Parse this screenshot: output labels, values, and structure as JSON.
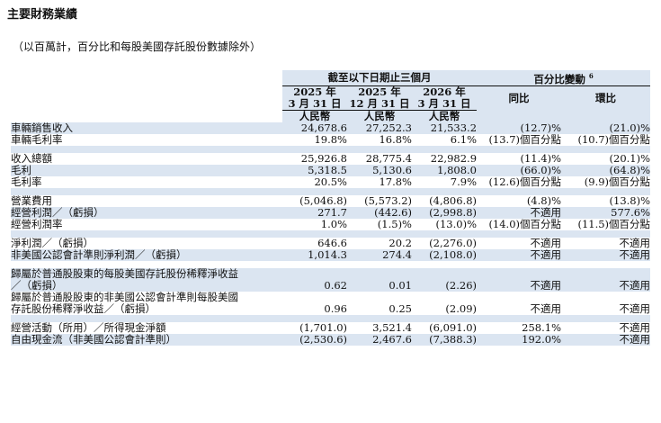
{
  "title": "主要財務業績",
  "subtitle": "（以百萬計，百分比和每股美國存託股份數據除外）",
  "header": {
    "period_group": "截至以下日期止三個月",
    "change_group": "百分比變動",
    "change_footnote": "6",
    "yoy": "同比",
    "qoq": "環比",
    "columns": [
      {
        "year": "2025 年",
        "date": "3 月 31 日",
        "currency": "人民幣"
      },
      {
        "year": "2025 年",
        "date": "12 月 31 日",
        "currency": "人民幣"
      },
      {
        "year": "2026 年",
        "date": "3 月 31 日",
        "currency": "人民幣"
      }
    ]
  },
  "rows": [
    {
      "label": "車輛銷售收入",
      "v1": "24,678.6",
      "v2": "27,252.3",
      "v3": "21,533.2",
      "yoy": "(12.7)%",
      "qoq": "(21.0)%"
    },
    {
      "label": "車輛毛利率",
      "v1": "19.8%",
      "v2": "16.8%",
      "v3": "6.1%",
      "yoy": "(13.7)個百分點",
      "qoq": "(10.7)個百分點"
    },
    {
      "label": "收入總額",
      "v1": "25,926.8",
      "v2": "28,775.4",
      "v3": "22,982.9",
      "yoy": "(11.4)%",
      "qoq": "(20.1)%"
    },
    {
      "label": "毛利",
      "v1": "5,318.5",
      "v2": "5,130.6",
      "v3": "1,808.0",
      "yoy": "(66.0)%",
      "qoq": "(64.8)%"
    },
    {
      "label": "毛利率",
      "v1": "20.5%",
      "v2": "17.8%",
      "v3": "7.9%",
      "yoy": "(12.6)個百分點",
      "qoq": "(9.9)個百分點"
    },
    {
      "label": "營業費用",
      "v1": "(5,046.8)",
      "v2": "(5,573.2)",
      "v3": "(4,806.8)",
      "yoy": "(4.8)%",
      "qoq": "(13.8)%"
    },
    {
      "label": "經營利潤／（虧損）",
      "v1": "271.7",
      "v2": "(442.6)",
      "v3": "(2,998.8)",
      "yoy": "不適用",
      "qoq": "577.6%"
    },
    {
      "label": "經營利潤率",
      "v1": "1.0%",
      "v2": "(1.5)%",
      "v3": "(13.0)%",
      "yoy": "(14.0)個百分點",
      "qoq": "(11.5)個百分點"
    },
    {
      "label": "淨利潤／（虧損）",
      "v1": "646.6",
      "v2": "20.2",
      "v3": "(2,276.0)",
      "yoy": "不適用",
      "qoq": "不適用"
    },
    {
      "label": "非美國公認會計準則淨利潤／（虧損）",
      "v1": "1,014.3",
      "v2": "274.4",
      "v3": "(2,108.0)",
      "yoy": "不適用",
      "qoq": "不適用"
    },
    {
      "label": "歸屬於普通股股東的每股美國存託股份稀釋淨收益",
      "label2": "／（虧損）",
      "v1": "0.62",
      "v2": "0.01",
      "v3": "(2.26)",
      "yoy": "不適用",
      "qoq": "不適用"
    },
    {
      "label": "歸屬於普通股股東的非美國公認會計準則每股美國",
      "label2": "存託股份稀釋淨收益／（虧損）",
      "v1": "0.96",
      "v2": "0.25",
      "v3": "(2.09)",
      "yoy": "不適用",
      "qoq": "不適用"
    },
    {
      "label": "經營活動（所用）／所得現金淨額",
      "v1": "(1,701.0)",
      "v2": "3,521.4",
      "v3": "(6,091.0)",
      "yoy": "258.1%",
      "qoq": "不適用"
    },
    {
      "label": "自由現金流（非美國公認會計準則）",
      "v1": "(2,530.6)",
      "v2": "2,467.6",
      "v3": "(7,388.3)",
      "yoy": "192.0%",
      "qoq": "不適用"
    }
  ]
}
